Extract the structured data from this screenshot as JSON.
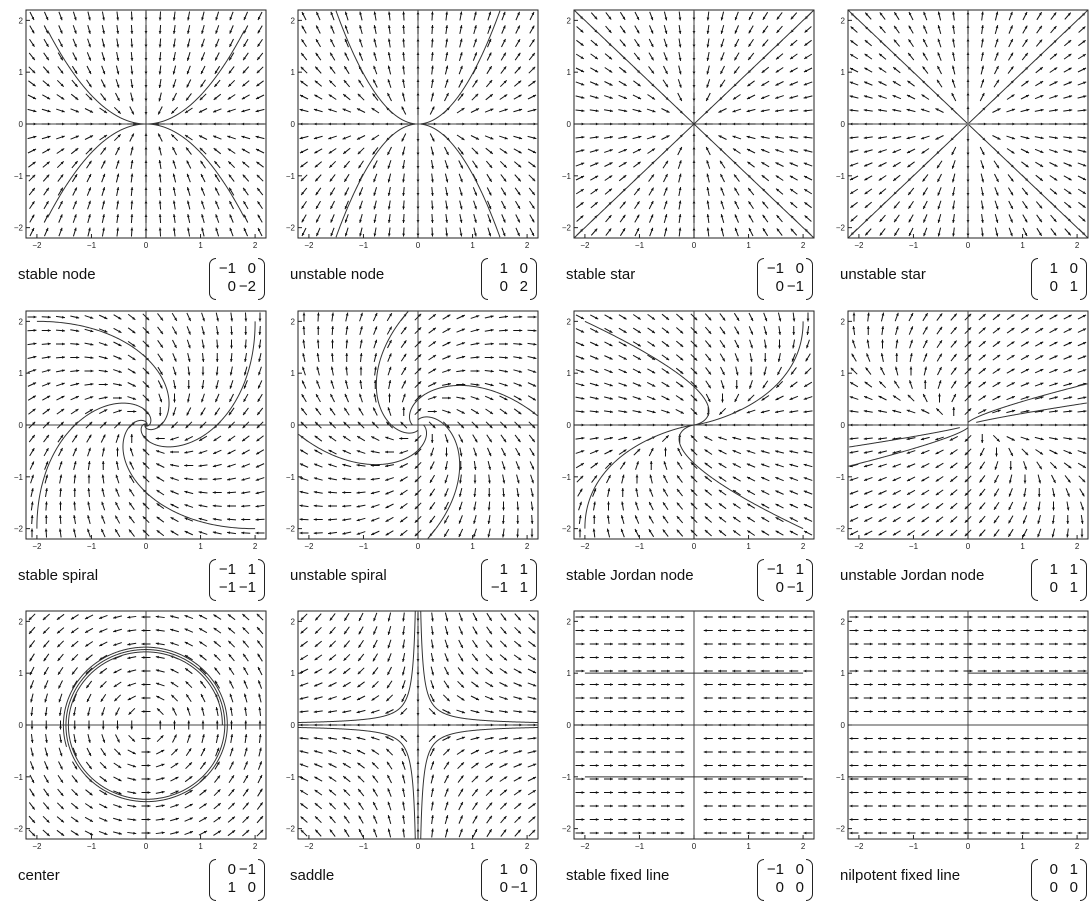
{
  "colors": {
    "background": "#ffffff",
    "ink": "#111111",
    "axis": "#444444"
  },
  "chart_data": [
    {
      "type": "vector-field",
      "name": "stable node",
      "matrix": [
        [
          "−1",
          "0"
        ],
        [
          "0",
          "−2"
        ]
      ],
      "a": -1,
      "b": 0,
      "c": 0,
      "d": -2,
      "xlim": [
        -2.2,
        2.2
      ],
      "ylim": [
        -2.2,
        2.2
      ],
      "xticks": [
        "−2",
        "−1",
        "0",
        "1",
        "2"
      ],
      "yticks": [
        "−2",
        "−1",
        "0",
        "1",
        "2"
      ],
      "trajectories": [
        [
          1.8,
          1.8
        ],
        [
          -1.8,
          1.8
        ],
        [
          1.8,
          -1.8
        ],
        [
          -1.8,
          -1.8
        ]
      ]
    },
    {
      "type": "vector-field",
      "name": "unstable node",
      "matrix": [
        [
          "1",
          "0"
        ],
        [
          "0",
          "2"
        ]
      ],
      "a": 1,
      "b": 0,
      "c": 0,
      "d": 2,
      "xlim": [
        -2.2,
        2.2
      ],
      "ylim": [
        -2.2,
        2.2
      ],
      "xticks": [
        "−2",
        "−1",
        "0",
        "1",
        "2"
      ],
      "yticks": [
        "−2",
        "−1",
        "0",
        "1",
        "2"
      ],
      "trajectories": [
        [
          0.05,
          0.0025
        ],
        [
          -0.05,
          0.0025
        ],
        [
          0.05,
          -0.0025
        ],
        [
          -0.05,
          -0.0025
        ]
      ]
    },
    {
      "type": "vector-field",
      "name": "stable star",
      "matrix": [
        [
          "−1",
          "0"
        ],
        [
          "0",
          "−1"
        ]
      ],
      "a": -1,
      "b": 0,
      "c": 0,
      "d": -1,
      "xlim": [
        -2.2,
        2.2
      ],
      "ylim": [
        -2.2,
        2.2
      ],
      "xticks": [
        "−2",
        "−1",
        "0",
        "1",
        "2"
      ],
      "yticks": [
        "−2",
        "−1",
        "0",
        "1",
        "2"
      ],
      "trajectories": [
        [
          2.2,
          2.2
        ],
        [
          -2.2,
          2.2
        ],
        [
          2.2,
          -2.2
        ],
        [
          -2.2,
          -2.2
        ]
      ]
    },
    {
      "type": "vector-field",
      "name": "unstable star",
      "matrix": [
        [
          "1",
          "0"
        ],
        [
          "0",
          "1"
        ]
      ],
      "a": 1,
      "b": 0,
      "c": 0,
      "d": 1,
      "xlim": [
        -2.2,
        2.2
      ],
      "ylim": [
        -2.2,
        2.2
      ],
      "xticks": [
        "−2",
        "−1",
        "0",
        "1",
        "2"
      ],
      "yticks": [
        "−2",
        "−1",
        "0",
        "1",
        "2"
      ],
      "trajectories": [
        [
          0.02,
          0.02
        ],
        [
          -0.02,
          0.02
        ],
        [
          0.02,
          -0.02
        ],
        [
          -0.02,
          -0.02
        ]
      ]
    },
    {
      "type": "vector-field",
      "name": "stable spiral",
      "matrix": [
        [
          "−1",
          "1"
        ],
        [
          "−1",
          "−1"
        ]
      ],
      "a": -1,
      "b": 1,
      "c": -1,
      "d": -1,
      "xlim": [
        -2.2,
        2.2
      ],
      "ylim": [
        -2.2,
        2.2
      ],
      "xticks": [
        "−2",
        "−1",
        "0",
        "1",
        "2"
      ],
      "yticks": [
        "−2",
        "−1",
        "0",
        "1",
        "2"
      ],
      "trajectories": [
        [
          -2,
          2
        ],
        [
          2,
          2
        ],
        [
          2,
          -2
        ],
        [
          -2,
          -2
        ]
      ]
    },
    {
      "type": "vector-field",
      "name": "unstable spiral",
      "matrix": [
        [
          "1",
          "1"
        ],
        [
          "−1",
          "1"
        ]
      ],
      "a": 1,
      "b": 1,
      "c": -1,
      "d": 1,
      "xlim": [
        -2.2,
        2.2
      ],
      "ylim": [
        -2.2,
        2.2
      ],
      "xticks": [
        "−2",
        "−1",
        "0",
        "1",
        "2"
      ],
      "yticks": [
        "−2",
        "−1",
        "0",
        "1",
        "2"
      ],
      "trajectories": [
        [
          0.1,
          0
        ],
        [
          -0.1,
          0
        ],
        [
          0,
          0.1
        ],
        [
          0,
          -0.1
        ]
      ]
    },
    {
      "type": "vector-field",
      "name": "stable Jordan node",
      "matrix": [
        [
          "−1",
          "1"
        ],
        [
          "0",
          "−1"
        ]
      ],
      "a": -1,
      "b": 1,
      "c": 0,
      "d": -1,
      "xlim": [
        -2.2,
        2.2
      ],
      "ylim": [
        -2.2,
        2.2
      ],
      "xticks": [
        "−2",
        "−1",
        "0",
        "1",
        "2"
      ],
      "yticks": [
        "−2",
        "−1",
        "0",
        "1",
        "2"
      ],
      "trajectories": [
        [
          -2,
          2
        ],
        [
          2,
          -2
        ],
        [
          2,
          2
        ],
        [
          -2,
          -2
        ]
      ]
    },
    {
      "type": "vector-field",
      "name": "unstable Jordan node",
      "matrix": [
        [
          "1",
          "1"
        ],
        [
          "0",
          "1"
        ]
      ],
      "a": 1,
      "b": 1,
      "c": 0,
      "d": 1,
      "xlim": [
        -2.2,
        2.2
      ],
      "ylim": [
        -2.2,
        2.2
      ],
      "xticks": [
        "−2",
        "−1",
        "0",
        "1",
        "2"
      ],
      "yticks": [
        "−2",
        "−1",
        "0",
        "1",
        "2"
      ],
      "trajectories": [
        [
          0,
          0.05
        ],
        [
          0,
          -0.05
        ],
        [
          0.15,
          0.05
        ],
        [
          -0.15,
          -0.05
        ]
      ]
    },
    {
      "type": "vector-field",
      "name": "center",
      "matrix": [
        [
          "0",
          "−1"
        ],
        [
          "1",
          "0"
        ]
      ],
      "a": 0,
      "b": -1,
      "c": 1,
      "d": 0,
      "xlim": [
        -2.2,
        2.2
      ],
      "ylim": [
        -2.2,
        2.2
      ],
      "xticks": [
        "−2",
        "−1",
        "0",
        "1",
        "2"
      ],
      "yticks": [
        "−2",
        "−1",
        "0",
        "1",
        "2"
      ],
      "trajectories": [
        [
          1.4,
          0
        ]
      ]
    },
    {
      "type": "vector-field",
      "name": "saddle",
      "matrix": [
        [
          "1",
          "0"
        ],
        [
          "0",
          "−1"
        ]
      ],
      "a": 1,
      "b": 0,
      "c": 0,
      "d": -1,
      "xlim": [
        -2.2,
        2.2
      ],
      "ylim": [
        -2.2,
        2.2
      ],
      "xticks": [
        "−2",
        "−1",
        "0",
        "1",
        "2"
      ],
      "yticks": [
        "−2",
        "−1",
        "0",
        "1",
        "2"
      ],
      "trajectories": [
        [
          0.05,
          2.2
        ],
        [
          -0.05,
          2.2
        ],
        [
          0.05,
          -2.2
        ],
        [
          -0.05,
          -2.2
        ]
      ]
    },
    {
      "type": "vector-field",
      "name": "stable fixed line",
      "matrix": [
        [
          "−1",
          "0"
        ],
        [
          "0",
          "0"
        ]
      ],
      "a": -1,
      "b": 0,
      "c": 0,
      "d": 0,
      "xlim": [
        -2.2,
        2.2
      ],
      "ylim": [
        -2.2,
        2.2
      ],
      "xticks": [
        "−2",
        "−1",
        "0",
        "1",
        "2"
      ],
      "yticks": [
        "−2",
        "−1",
        "0",
        "1",
        "2"
      ],
      "trajectories": [
        [
          2,
          1
        ],
        [
          -2,
          1
        ],
        [
          2,
          -1
        ],
        [
          -2,
          -1
        ]
      ]
    },
    {
      "type": "vector-field",
      "name": "nilpotent fixed line",
      "matrix": [
        [
          "0",
          "1"
        ],
        [
          "0",
          "0"
        ]
      ],
      "a": 0,
      "b": 1,
      "c": 0,
      "d": 0,
      "xlim": [
        -2.2,
        2.2
      ],
      "ylim": [
        -2.2,
        2.2
      ],
      "xticks": [
        "−2",
        "−1",
        "0",
        "1",
        "2"
      ],
      "yticks": [
        "−2",
        "−1",
        "0",
        "1",
        "2"
      ],
      "trajectories": [
        [
          0,
          1
        ],
        [
          0,
          -1
        ]
      ]
    }
  ]
}
